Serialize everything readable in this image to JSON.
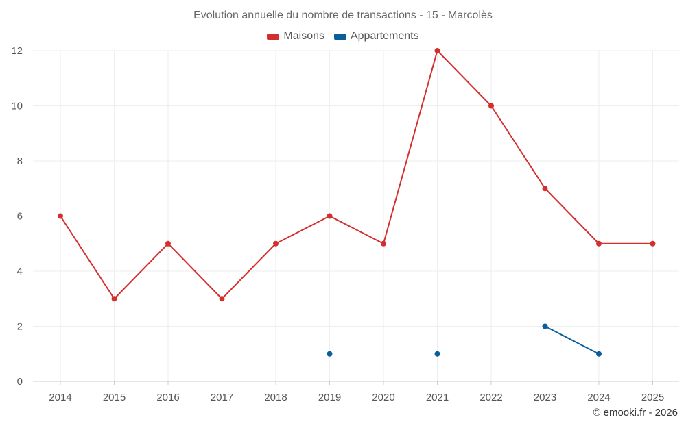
{
  "chart_data": {
    "type": "line",
    "title": "Evolution annuelle du nombre de transactions - 15 - Marcolès",
    "xlabel": "",
    "ylabel": "",
    "categories": [
      "2014",
      "2015",
      "2016",
      "2017",
      "2018",
      "2019",
      "2020",
      "2021",
      "2022",
      "2023",
      "2024",
      "2025"
    ],
    "ylim": [
      0,
      12
    ],
    "yticks": [
      0,
      2,
      4,
      6,
      8,
      10,
      12
    ],
    "grid": true,
    "legend_position": "top-center",
    "series": [
      {
        "name": "Maisons",
        "color": "#d32f2f",
        "values": [
          6,
          3,
          5,
          3,
          5,
          6,
          5,
          12,
          10,
          7,
          5,
          5
        ]
      },
      {
        "name": "Appartements",
        "color": "#0b5f99",
        "values": [
          null,
          null,
          null,
          null,
          null,
          1,
          null,
          1,
          null,
          2,
          1,
          null
        ]
      }
    ]
  },
  "credit": "© emooki.fr - 2026"
}
